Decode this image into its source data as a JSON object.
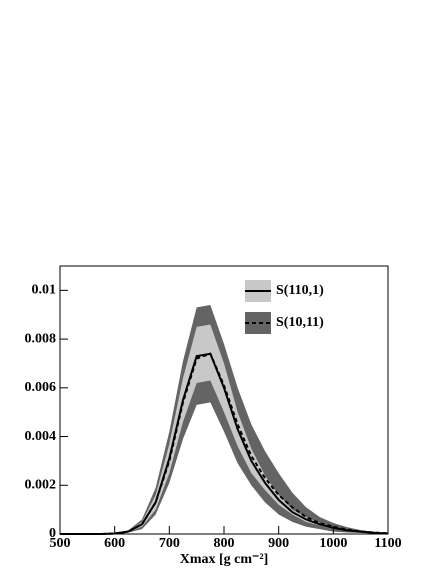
{
  "chart_data": {
    "type": "line",
    "x_label": "Xmax [g cm⁻²]",
    "x": [
      500,
      525,
      550,
      575,
      600,
      625,
      650,
      675,
      700,
      725,
      750,
      775,
      800,
      825,
      850,
      875,
      900,
      925,
      950,
      975,
      1000,
      1025,
      1050,
      1075,
      1100
    ],
    "xlim": [
      500,
      1100
    ],
    "xticks": [
      500,
      600,
      700,
      800,
      900,
      1000,
      1100
    ],
    "ylim": [
      0,
      0.011
    ],
    "yticks": [
      0,
      0.002,
      0.004,
      0.006,
      0.008,
      0.01
    ],
    "series": [
      {
        "name": "S(110,1)",
        "color": "#000000",
        "dash": false,
        "band_color": "#c8c8c8",
        "values": [
          0,
          0,
          0,
          0,
          2e-05,
          0.0001,
          0.0004,
          0.0013,
          0.0031,
          0.0055,
          0.0073,
          0.0074,
          0.006,
          0.0043,
          0.003,
          0.0021,
          0.0014,
          0.0009,
          0.0006,
          0.0004,
          0.00025,
          0.00015,
          0.0001,
          5e-05,
          2e-05
        ],
        "upper": [
          0,
          0,
          0,
          0,
          3e-05,
          0.00012,
          0.0005,
          0.0016,
          0.0037,
          0.0064,
          0.0085,
          0.0086,
          0.007,
          0.005,
          0.0035,
          0.0024,
          0.0016,
          0.001,
          0.0007,
          0.00045,
          0.0003,
          0.00018,
          0.00012,
          6e-05,
          2e-05
        ],
        "lower": [
          0,
          0,
          0,
          0,
          1e-05,
          8e-05,
          0.0003,
          0.001,
          0.0025,
          0.0046,
          0.0062,
          0.0063,
          0.005,
          0.0036,
          0.0025,
          0.0018,
          0.0012,
          0.0008,
          0.0005,
          0.00035,
          0.0002,
          0.00012,
          8e-05,
          4e-05,
          1e-05
        ]
      },
      {
        "name": "S(10,11)",
        "color": "#000000",
        "dash": true,
        "band_color": "#646464",
        "values": [
          0,
          0,
          0,
          0,
          2e-05,
          0.0001,
          0.0004,
          0.0013,
          0.003,
          0.0054,
          0.0072,
          0.0074,
          0.0061,
          0.0045,
          0.0032,
          0.0023,
          0.0016,
          0.0011,
          0.0007,
          0.00045,
          0.0003,
          0.00018,
          0.0001,
          6e-05,
          3e-05
        ],
        "upper": [
          0,
          0,
          0,
          0,
          3e-05,
          0.00015,
          0.0006,
          0.0019,
          0.0042,
          0.0071,
          0.0093,
          0.0094,
          0.0078,
          0.006,
          0.0045,
          0.0034,
          0.0025,
          0.0017,
          0.0011,
          0.0007,
          0.00045,
          0.00028,
          0.00016,
          8e-05,
          3e-05
        ],
        "lower": [
          0,
          0,
          0,
          0,
          1e-05,
          6e-05,
          0.0002,
          0.0008,
          0.0021,
          0.0039,
          0.0053,
          0.0054,
          0.0042,
          0.0029,
          0.002,
          0.0013,
          0.0008,
          0.0005,
          0.0003,
          0.0002,
          0.0001,
          6e-05,
          4e-05,
          2e-05,
          0
        ]
      }
    ]
  }
}
